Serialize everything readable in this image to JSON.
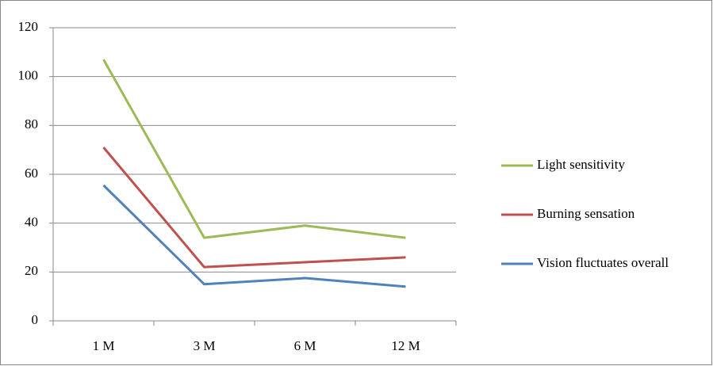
{
  "chart_data": {
    "type": "line",
    "categories": [
      "1 M",
      "3 M",
      "6 M",
      "12 M"
    ],
    "series": [
      {
        "name": "Light sensitivity",
        "color": "#9bbb59",
        "values": [
          107,
          34,
          39,
          34
        ]
      },
      {
        "name": "Burning sensation",
        "color": "#c0504d",
        "values": [
          71,
          22,
          24,
          26
        ]
      },
      {
        "name": "Vision fluctuates overall",
        "color": "#4f81bd",
        "values": [
          55.5,
          15,
          17.5,
          14
        ]
      }
    ],
    "ylim": [
      0,
      120
    ],
    "yticks": [
      0,
      20,
      40,
      60,
      80,
      100,
      120
    ],
    "grid": true,
    "legend": "right"
  }
}
